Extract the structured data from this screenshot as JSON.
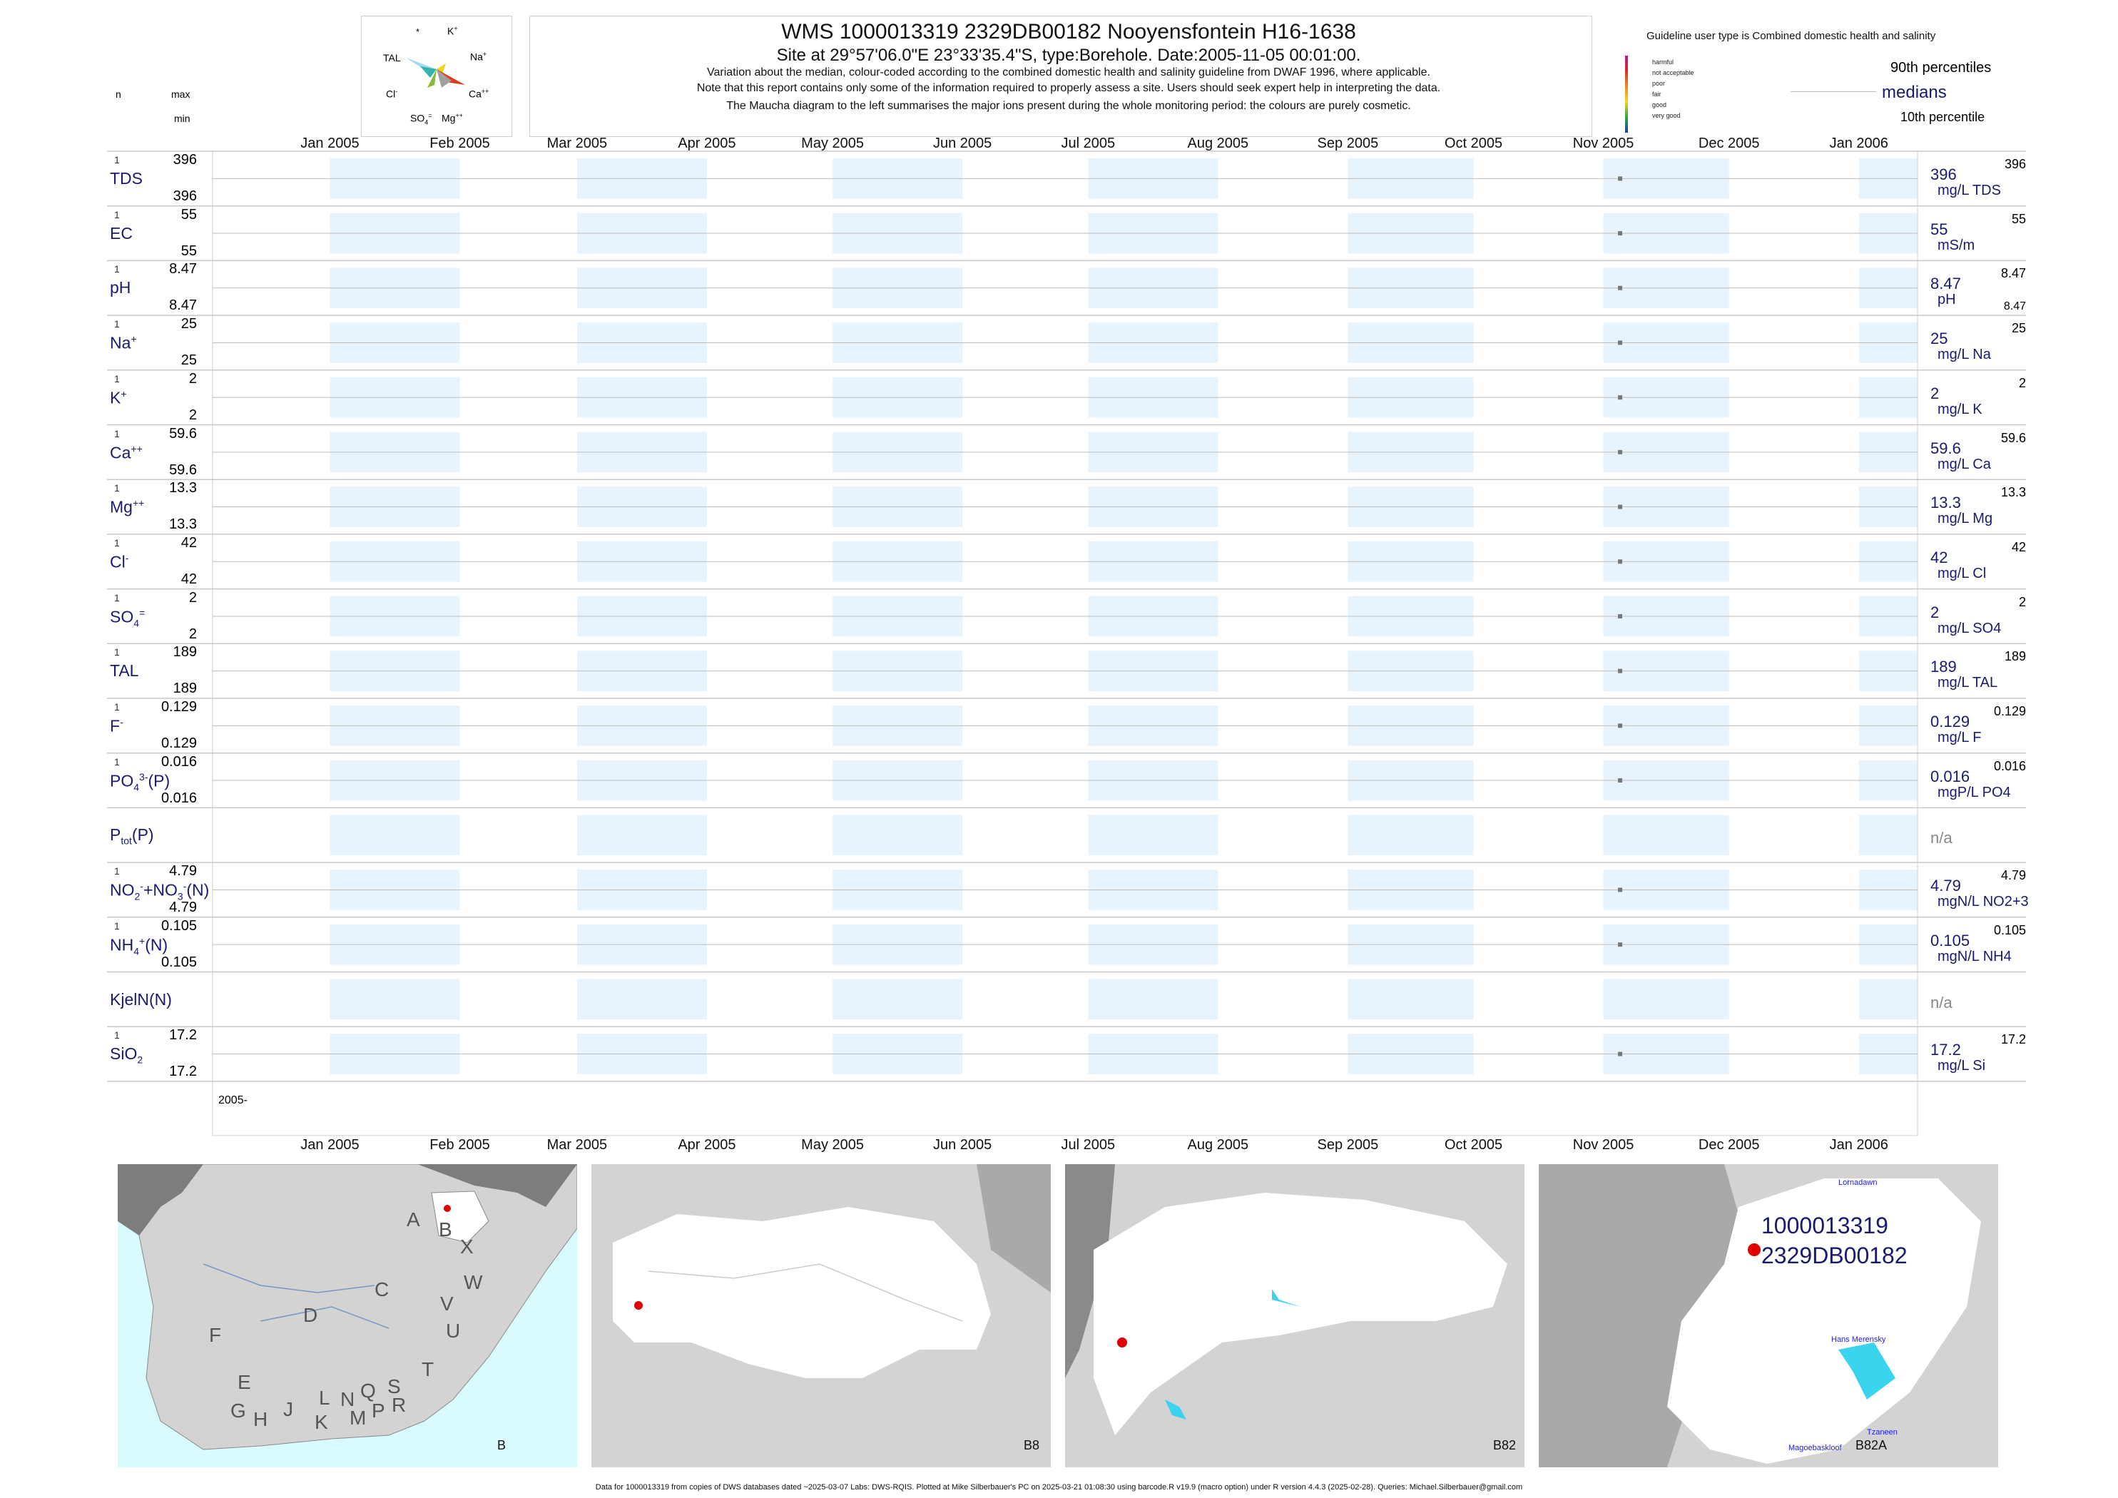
{
  "header": {
    "title": "WMS 1000013319 2329DB00182 Nooyensfontein H16-1638",
    "subtitle": "Site at 29°57'06.0\"E 23°33'35.4\"S, type:Borehole. Date:2005-11-05 00:01:00.",
    "note_lines": [
      "Variation about the median,  colour-coded according to the combined domestic health and salinity guideline from DWAF 1996, where applicable.",
      "Note that this report contains only some of the information required to properly assess a site. Users should seek expert help in interpreting the data.",
      "The Maucha diagram to the left summarises the major ions present during the whole monitoring period: the colours are purely cosmetic."
    ],
    "col_n": "n",
    "col_max": "max",
    "col_min": "min"
  },
  "maucha": {
    "labels": [
      "*",
      "K+",
      "TAL",
      "Na+",
      "Cl-",
      "Ca++",
      "SO4=",
      "Mg++"
    ],
    "label_k": "K",
    "label_na": "Na",
    "label_cl": "Cl",
    "label_ca": "Ca",
    "label_so4": "SO",
    "label_mg": "Mg",
    "label_tal": "TAL",
    "label_star": "*"
  },
  "legend": {
    "title": "Guideline user type is Combined domestic health and salinity",
    "levels": [
      {
        "label": "harmful",
        "color": "#b0198c"
      },
      {
        "label": "not acceptable",
        "color": "#d62b2b"
      },
      {
        "label": "poor",
        "color": "#f08c1e"
      },
      {
        "label": "fair",
        "color": "#f2d21e"
      },
      {
        "label": "good",
        "color": "#2aa84a"
      },
      {
        "label": "very good",
        "color": "#1e3ca8"
      }
    ],
    "p90": "90th percentiles",
    "medians": "medians",
    "p10": "10th percentile"
  },
  "chart_data": {
    "type": "scatter",
    "x_axis_type": "date",
    "xlim": [
      "2004-12-04",
      "2006-01-15"
    ],
    "x_ticks": [
      "2005-01-01",
      "2005-02-01",
      "2005-03-01",
      "2005-04-01",
      "2005-05-01",
      "2005-06-01",
      "2005-07-01",
      "2005-08-01",
      "2005-09-01",
      "2005-10-01",
      "2005-11-01",
      "2005-12-01",
      "2006-01-01"
    ],
    "x_tick_labels": [
      "Jan 2005",
      "Feb 2005",
      "Mar 2005",
      "Apr 2005",
      "May 2005",
      "Jun 2005",
      "Jul 2005",
      "Aug 2005",
      "Sep 2005",
      "Oct 2005",
      "Nov 2005",
      "Dec 2005",
      "Jan 2006"
    ],
    "bottom_date_label": "2005-",
    "sample_date": "2005-11-05",
    "rows": [
      {
        "label": "TDS",
        "n": "1",
        "max": "396",
        "min": "396",
        "median": "396",
        "unit": "mg/L TDS",
        "p90": "396",
        "p10": ""
      },
      {
        "label": "EC",
        "n": "1",
        "max": "55",
        "min": "55",
        "median": "55",
        "unit": "mS/m",
        "p90": "55",
        "p10": ""
      },
      {
        "label": "pH",
        "n": "1",
        "max": "8.47",
        "min": "8.47",
        "median": "8.47",
        "unit": "pH",
        "p90": "8.47",
        "p10": "8.47"
      },
      {
        "label": "Na",
        "sup": "+",
        "n": "1",
        "max": "25",
        "min": "25",
        "median": "25",
        "unit": "mg/L Na",
        "p90": "25",
        "p10": ""
      },
      {
        "label": "K",
        "sup": "+",
        "n": "1",
        "max": "2",
        "min": "2",
        "median": "2",
        "unit": "mg/L K",
        "p90": "2",
        "p10": ""
      },
      {
        "label": "Ca",
        "sup": "++",
        "n": "1",
        "max": "59.6",
        "min": "59.6",
        "median": "59.6",
        "unit": "mg/L Ca",
        "p90": "59.6",
        "p10": ""
      },
      {
        "label": "Mg",
        "sup": "++",
        "n": "1",
        "max": "13.3",
        "min": "13.3",
        "median": "13.3",
        "unit": "mg/L Mg",
        "p90": "13.3",
        "p10": ""
      },
      {
        "label": "Cl",
        "sup": "-",
        "n": "1",
        "max": "42",
        "min": "42",
        "median": "42",
        "unit": "mg/L Cl",
        "p90": "42",
        "p10": ""
      },
      {
        "label": "SO",
        "sub": "4",
        "sup": "=",
        "n": "1",
        "max": "2",
        "min": "2",
        "median": "2",
        "unit": "mg/L SO4",
        "p90": "2",
        "p10": ""
      },
      {
        "label": "TAL",
        "n": "1",
        "max": "189",
        "min": "189",
        "median": "189",
        "unit": "mg/L TAL",
        "p90": "189",
        "p10": ""
      },
      {
        "label": "F",
        "sup": "-",
        "n": "1",
        "max": "0.129",
        "min": "0.129",
        "median": "0.129",
        "unit": "mg/L F",
        "p90": "0.129",
        "p10": ""
      },
      {
        "label": "PO",
        "sub": "4",
        "sup": "3-",
        "tail": "(P)",
        "n": "1",
        "max": "0.016",
        "min": "0.016",
        "median": "0.016",
        "unit": "mgP/L PO4",
        "p90": "0.016",
        "p10": ""
      },
      {
        "label": "P",
        "sub": "tot",
        "tail": "(P)",
        "n": "",
        "max": "",
        "min": "",
        "median": "n/a",
        "unit": "",
        "p90": "",
        "p10": "",
        "na": true
      },
      {
        "label": "NO",
        "sub": "2",
        "sup": "-",
        "tail": "+NO",
        "sub2": "3",
        "sup2": "-",
        "tail2": "(N)",
        "n": "1",
        "max": "4.79",
        "min": "4.79",
        "median": "4.79",
        "unit": "mgN/L NO2+3",
        "p90": "4.79",
        "p10": ""
      },
      {
        "label": "NH",
        "sub": "4",
        "sup": "+",
        "tail": "(N)",
        "n": "1",
        "max": "0.105",
        "min": "0.105",
        "median": "0.105",
        "unit": "mgN/L NH4",
        "p90": "0.105",
        "p10": ""
      },
      {
        "label": "KjelN(N)",
        "n": "",
        "max": "",
        "min": "",
        "median": "n/a",
        "unit": "",
        "p90": "",
        "p10": "",
        "na": true
      },
      {
        "label": "SiO",
        "sub": "2",
        "n": "1",
        "max": "17.2",
        "min": "17.2",
        "median": "17.2",
        "unit": "mg/L Si",
        "p90": "17.2",
        "p10": ""
      }
    ]
  },
  "maps": {
    "map1_label": "B",
    "map1_regions": [
      "A",
      "B",
      "X",
      "W",
      "C",
      "V",
      "U",
      "D",
      "T",
      "F",
      "E",
      "S",
      "R",
      "Q",
      "L",
      "N",
      "P",
      "M",
      "K",
      "J",
      "G",
      "H"
    ],
    "map2_label": "B8",
    "map3_label": "B82",
    "map4_label": "B82A",
    "map4_site1": "1000013319",
    "map4_site2": "2329DB00182",
    "map4_places": [
      "Lornadawn",
      "Hans Merensky",
      "Tzaneen",
      "Magoebaskloof"
    ]
  },
  "footer": "Data for 1000013319 from copies of DWS databases dated ~2025-03-07 Labs: DWS-RQIS. Plotted at Mike Silberbauer's PC on 2025-03-21 01:08:30 using barcode.R v19.9 (macro option) under R version 4.4.3 (2025-02-28). Queries: Michael.Silberbauer@gmail.com"
}
